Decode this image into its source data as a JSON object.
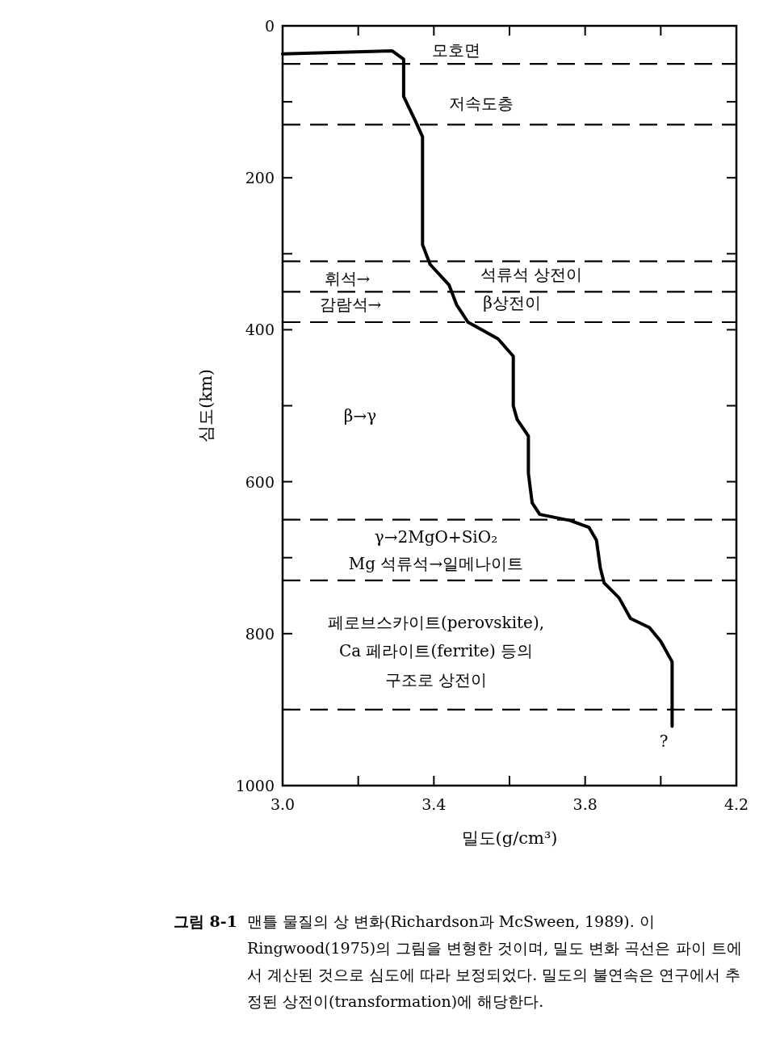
{
  "chart_data": {
    "type": "line",
    "xlabel": "밀도(g/cm³)",
    "ylabel": "심도(km)",
    "xlim": [
      3.0,
      4.2
    ],
    "ylim": [
      1000,
      0
    ],
    "xticks": [
      {
        "value": 3.0,
        "label": "3.0"
      },
      {
        "value": 3.2,
        "label": null
      },
      {
        "value": 3.4,
        "label": "3.4"
      },
      {
        "value": 3.6,
        "label": null
      },
      {
        "value": 3.8,
        "label": "3.8"
      },
      {
        "value": 4.0,
        "label": null
      },
      {
        "value": 4.2,
        "label": "4.2"
      }
    ],
    "yticks": [
      0,
      {
        "value": 100,
        "label": null
      },
      200,
      {
        "value": 300,
        "label": null
      },
      400,
      {
        "value": 500,
        "label": null
      },
      600,
      {
        "value": 700,
        "label": null
      },
      800,
      {
        "value": 900,
        "label": null
      },
      1000
    ],
    "grid": false,
    "marker": "none",
    "series": [
      {
        "color": "#000000",
        "line_style": "solid",
        "x": [
          3.0,
          3.29,
          3.32,
          3.32,
          3.32,
          3.35,
          3.37,
          3.37,
          3.37,
          3.39,
          3.44,
          3.46,
          3.49,
          3.53,
          3.57,
          3.61,
          3.61,
          3.61,
          3.62,
          3.65,
          3.65,
          3.66,
          3.68,
          3.76,
          3.81,
          3.83,
          3.84,
          3.85,
          3.89,
          3.92,
          3.97,
          4.0,
          4.03,
          4.03,
          4.03
        ],
        "values": [
          37,
          33,
          44,
          75,
          93,
          124,
          146,
          208,
          288,
          314,
          341,
          367,
          390,
          401,
          412,
          435,
          438,
          500,
          518,
          540,
          589,
          628,
          643,
          651,
          660,
          677,
          713,
          733,
          753,
          780,
          792,
          810,
          837,
          861,
          922
        ]
      }
    ],
    "ref_lines": [
      {
        "axis": "y",
        "value": 50,
        "line_style": "dashed",
        "color": "#000000"
      },
      {
        "axis": "y",
        "value": 130,
        "line_style": "dashed",
        "color": "#000000"
      },
      {
        "axis": "y",
        "value": 310,
        "line_style": "dashed",
        "color": "#000000"
      },
      {
        "axis": "y",
        "value": 350,
        "line_style": "dashed",
        "color": "#000000"
      },
      {
        "axis": "y",
        "value": 390,
        "line_style": "dashed",
        "color": "#000000"
      },
      {
        "axis": "y",
        "value": 650,
        "line_style": "dashed",
        "color": "#000000"
      },
      {
        "axis": "y",
        "value": 730,
        "line_style": "dashed",
        "color": "#000000"
      },
      {
        "axis": "y",
        "value": 900,
        "line_style": "dashed",
        "color": "#000000"
      }
    ],
    "annotations": [
      "모호면",
      "저속도층",
      "휘석→",
      "석류석 상전이",
      "감람석→",
      "β상전이",
      "β→γ",
      "γ→2MgO+SiO₂",
      "Mg 석류석→일메나이트",
      "페로브스카이트(perovskite),",
      "Ca 페라이트(ferrite) 등의",
      "구조로 상전이",
      "?",
      "그림 8-1",
      "맨틀 물질의 상 변화(Richardson과 McSween, 1989). 이 Ringwood(1975)의 그림을 변형한 것이며, 밀도 변화 곡선은 파이 트에서 계산된 것으로 심도에 따라 보정되었다. 밀도의 불연속은 연구에서 추정된 상전이(transformation)에 해당한다."
    ]
  }
}
